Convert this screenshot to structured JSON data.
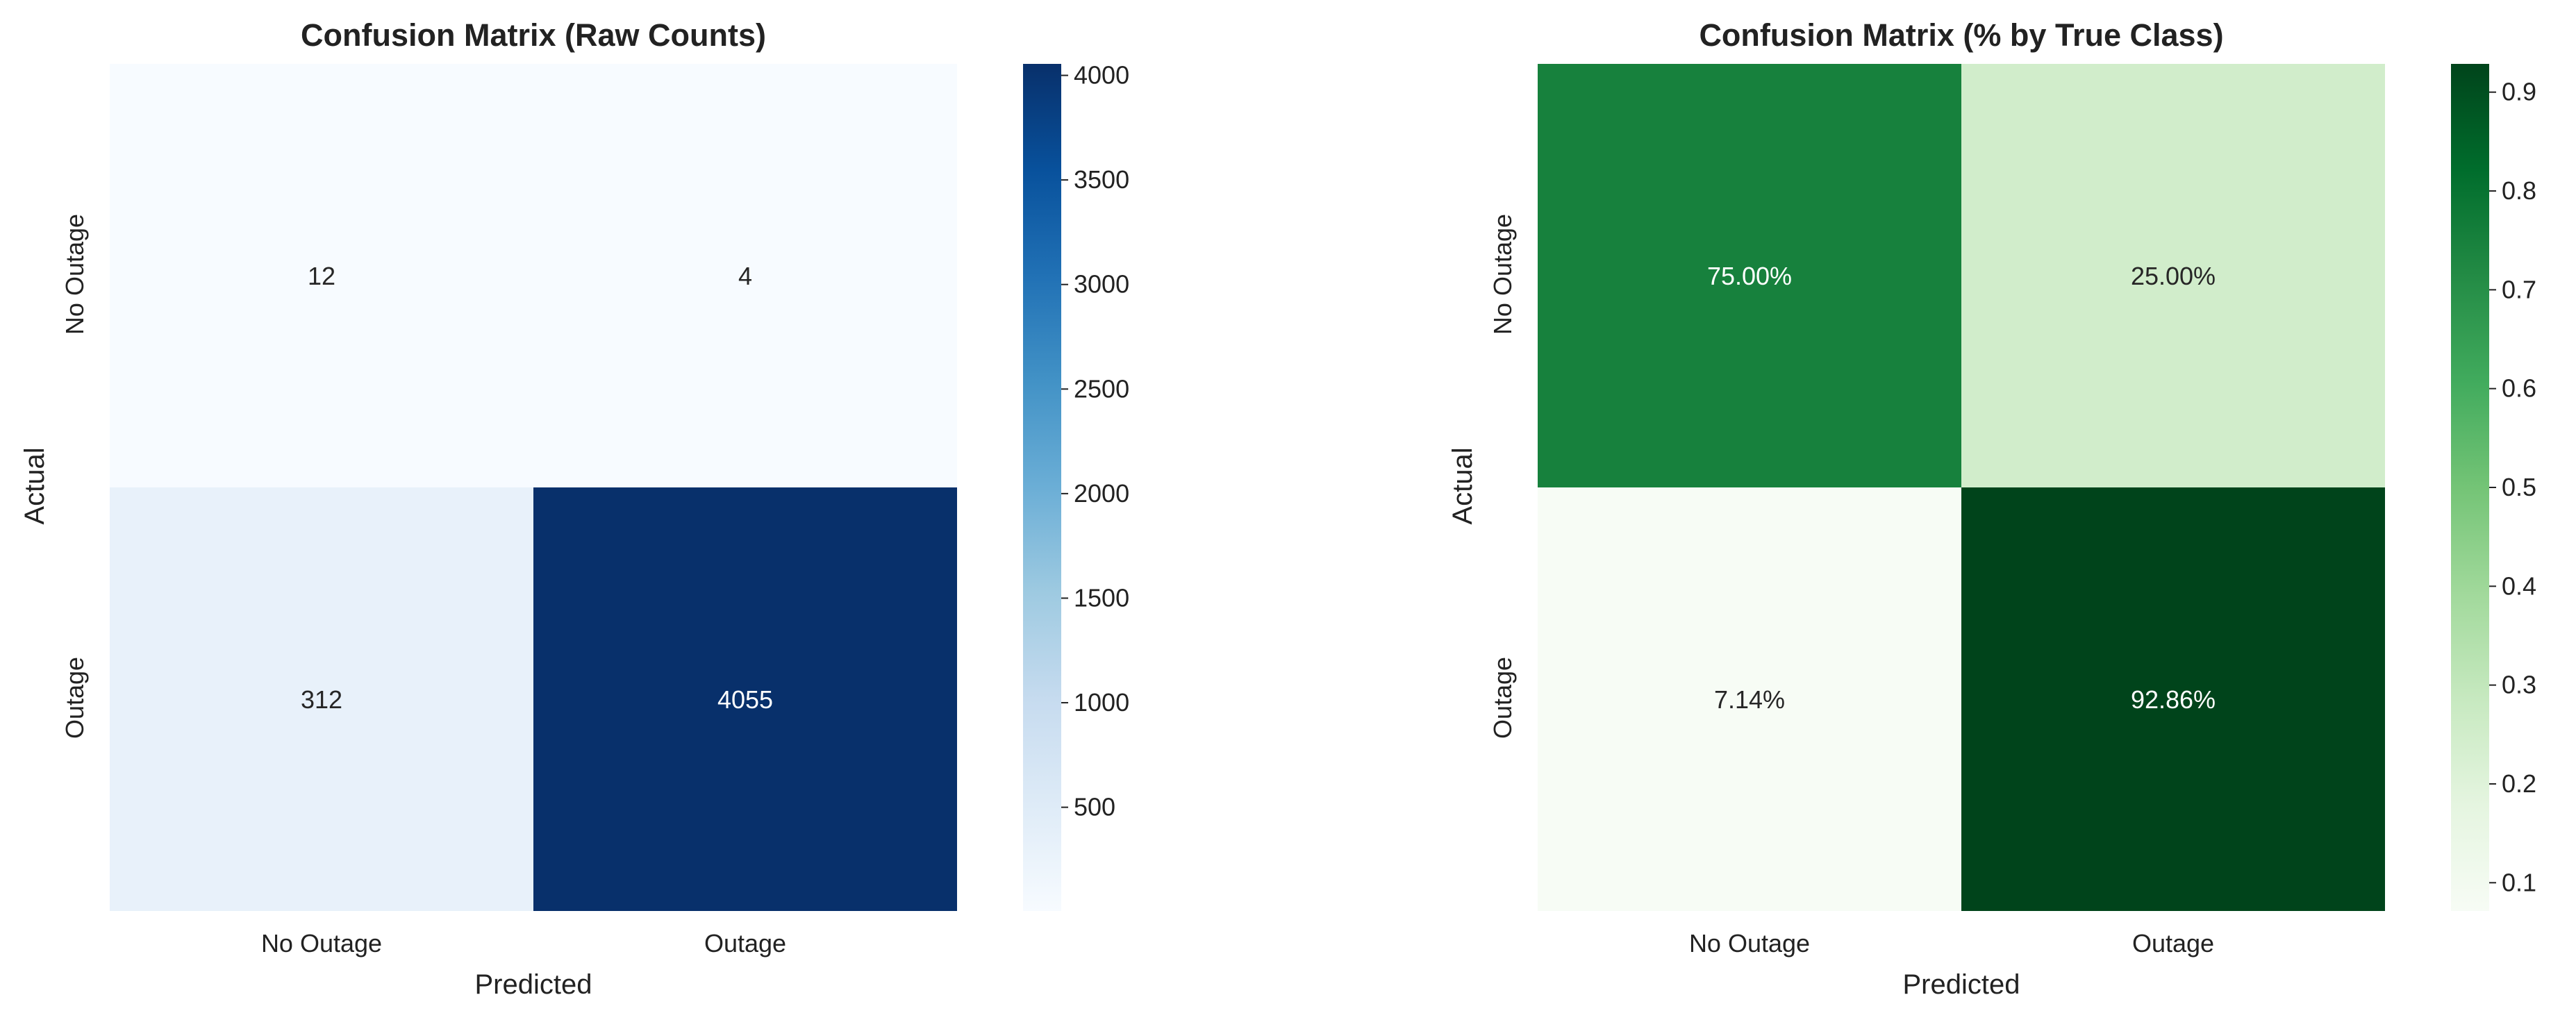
{
  "colors": {
    "background": "#ffffff",
    "text": "#222222",
    "blues_scale": [
      "#f7fbff",
      "#deebf7",
      "#c6dbef",
      "#9ecae1",
      "#6baed6",
      "#4292c6",
      "#2171b5",
      "#08519c",
      "#08306b"
    ],
    "greens_scale": [
      "#f7fcf5",
      "#e5f5e0",
      "#c7e9c0",
      "#a1d99b",
      "#74c476",
      "#41ab5d",
      "#238b45",
      "#006d2c",
      "#00441b"
    ]
  },
  "chart_data": [
    {
      "type": "heatmap",
      "title": "Confusion Matrix (Raw Counts)",
      "xlabel": "Predicted",
      "ylabel": "Actual",
      "x_categories": [
        "No Outage",
        "Outage"
      ],
      "y_categories": [
        "No Outage",
        "Outage"
      ],
      "values": [
        [
          12,
          4
        ],
        [
          312,
          4055
        ]
      ],
      "cell_labels": [
        [
          "12",
          "4"
        ],
        [
          "312",
          "4055"
        ]
      ],
      "colormap": "Blues",
      "colorbar": {
        "min": 4,
        "max": 4055,
        "ticks": [
          500,
          1000,
          1500,
          2000,
          2500,
          3000,
          3500,
          4000
        ],
        "tick_labels": [
          "500",
          "1000",
          "1500",
          "2000",
          "2500",
          "3000",
          "3500",
          "4000"
        ]
      }
    },
    {
      "type": "heatmap",
      "title": "Confusion Matrix (% by True Class)",
      "xlabel": "Predicted",
      "ylabel": "Actual",
      "x_categories": [
        "No Outage",
        "Outage"
      ],
      "y_categories": [
        "No Outage",
        "Outage"
      ],
      "values": [
        [
          0.75,
          0.25
        ],
        [
          0.0714,
          0.9286
        ]
      ],
      "cell_labels": [
        [
          "75.00%",
          "25.00%"
        ],
        [
          "7.14%",
          "92.86%"
        ]
      ],
      "colormap": "Greens",
      "colorbar": {
        "min": 0.0714,
        "max": 0.9286,
        "ticks": [
          0.1,
          0.2,
          0.3,
          0.4,
          0.5,
          0.6,
          0.7,
          0.8,
          0.9
        ],
        "tick_labels": [
          "0.1",
          "0.2",
          "0.3",
          "0.4",
          "0.5",
          "0.6",
          "0.7",
          "0.8",
          "0.9"
        ]
      }
    }
  ]
}
